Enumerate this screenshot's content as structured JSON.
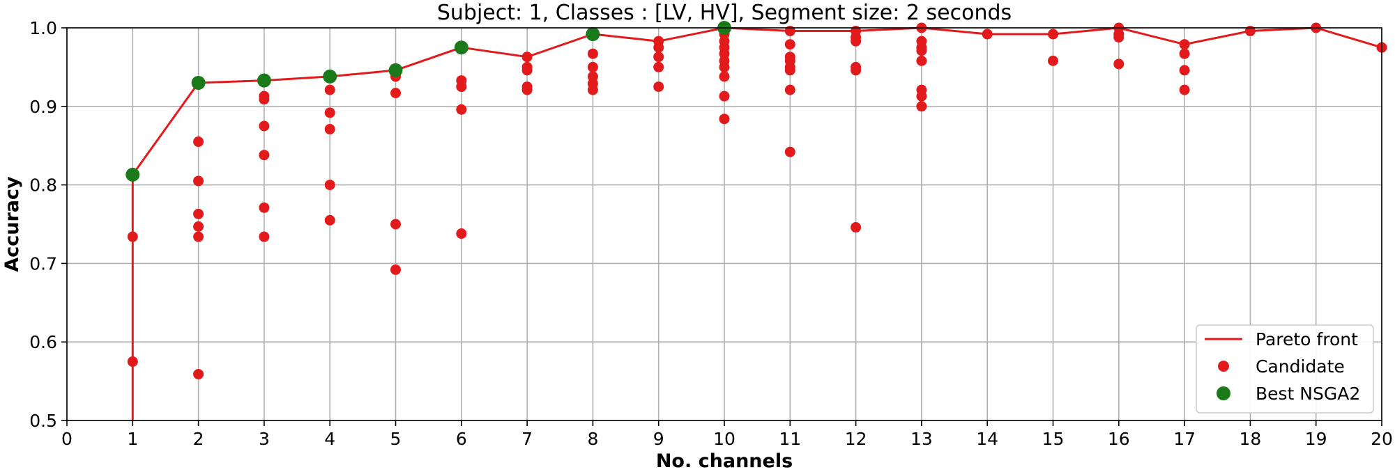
{
  "chart_data": {
    "type": "scatter",
    "title": "Subject: 1, Classes : [LV, HV], Segment size: 2 seconds",
    "xlabel": "No. channels",
    "ylabel": "Accuracy",
    "xlim": [
      0,
      20
    ],
    "ylim": [
      0.5,
      1.0
    ],
    "xticks": [
      "0",
      "1",
      "2",
      "3",
      "4",
      "5",
      "6",
      "7",
      "8",
      "9",
      "10",
      "11",
      "12",
      "13",
      "14",
      "15",
      "16",
      "17",
      "18",
      "19",
      "20"
    ],
    "yticks": [
      "0.5",
      "0.6",
      "0.7",
      "0.8",
      "0.9",
      "1.0"
    ],
    "grid": true,
    "legend_position": "bottom-right",
    "series": [
      {
        "name": "Pareto front",
        "kind": "line",
        "color": "#e31a1c",
        "x": [
          1,
          1,
          2,
          3,
          4,
          5,
          6,
          7,
          8,
          9,
          10,
          11,
          12,
          13,
          14,
          15,
          16,
          17,
          18,
          19,
          20
        ],
        "y": [
          0.5,
          0.813,
          0.93,
          0.933,
          0.938,
          0.946,
          0.975,
          0.963,
          0.992,
          0.983,
          1.0,
          0.996,
          0.996,
          1.0,
          0.992,
          0.992,
          1.0,
          0.979,
          0.996,
          1.0,
          0.975
        ]
      },
      {
        "name": "Candidate",
        "kind": "scatter",
        "color": "#e31a1c",
        "points": [
          [
            1,
            0.813
          ],
          [
            1,
            0.734
          ],
          [
            1,
            0.575
          ],
          [
            2,
            0.93
          ],
          [
            2,
            0.855
          ],
          [
            2,
            0.805
          ],
          [
            2,
            0.763
          ],
          [
            2,
            0.747
          ],
          [
            2,
            0.734
          ],
          [
            2,
            0.559
          ],
          [
            3,
            0.933
          ],
          [
            3,
            0.913
          ],
          [
            3,
            0.909
          ],
          [
            3,
            0.875
          ],
          [
            3,
            0.838
          ],
          [
            3,
            0.771
          ],
          [
            3,
            0.734
          ],
          [
            4,
            0.938
          ],
          [
            4,
            0.921
          ],
          [
            4,
            0.892
          ],
          [
            4,
            0.871
          ],
          [
            4,
            0.8
          ],
          [
            4,
            0.755
          ],
          [
            5,
            0.946
          ],
          [
            5,
            0.938
          ],
          [
            5,
            0.917
          ],
          [
            5,
            0.75
          ],
          [
            5,
            0.692
          ],
          [
            6,
            0.975
          ],
          [
            6,
            0.933
          ],
          [
            6,
            0.925
          ],
          [
            6,
            0.896
          ],
          [
            6,
            0.738
          ],
          [
            7,
            0.963
          ],
          [
            7,
            0.95
          ],
          [
            7,
            0.946
          ],
          [
            7,
            0.925
          ],
          [
            7,
            0.921
          ],
          [
            8,
            0.992
          ],
          [
            8,
            0.967
          ],
          [
            8,
            0.95
          ],
          [
            8,
            0.938
          ],
          [
            8,
            0.929
          ],
          [
            8,
            0.921
          ],
          [
            9,
            0.983
          ],
          [
            9,
            0.975
          ],
          [
            9,
            0.963
          ],
          [
            9,
            0.95
          ],
          [
            9,
            0.925
          ],
          [
            10,
            1.0
          ],
          [
            10,
            0.992
          ],
          [
            10,
            0.983
          ],
          [
            10,
            0.975
          ],
          [
            10,
            0.967
          ],
          [
            10,
            0.958
          ],
          [
            10,
            0.95
          ],
          [
            10,
            0.938
          ],
          [
            10,
            0.913
          ],
          [
            10,
            0.884
          ],
          [
            11,
            0.996
          ],
          [
            11,
            0.979
          ],
          [
            11,
            0.963
          ],
          [
            11,
            0.958
          ],
          [
            11,
            0.95
          ],
          [
            11,
            0.946
          ],
          [
            11,
            0.921
          ],
          [
            11,
            0.842
          ],
          [
            12,
            0.996
          ],
          [
            12,
            0.988
          ],
          [
            12,
            0.983
          ],
          [
            12,
            0.95
          ],
          [
            12,
            0.946
          ],
          [
            12,
            0.746
          ],
          [
            13,
            1.0
          ],
          [
            13,
            0.983
          ],
          [
            13,
            0.975
          ],
          [
            13,
            0.971
          ],
          [
            13,
            0.958
          ],
          [
            13,
            0.921
          ],
          [
            13,
            0.913
          ],
          [
            13,
            0.9
          ],
          [
            14,
            0.992
          ],
          [
            15,
            0.992
          ],
          [
            15,
            0.958
          ],
          [
            16,
            1.0
          ],
          [
            16,
            0.992
          ],
          [
            16,
            0.988
          ],
          [
            16,
            0.954
          ],
          [
            17,
            0.979
          ],
          [
            17,
            0.967
          ],
          [
            17,
            0.946
          ],
          [
            17,
            0.921
          ],
          [
            18,
            0.996
          ],
          [
            19,
            1.0
          ],
          [
            20,
            0.975
          ]
        ]
      },
      {
        "name": "Best NSGA2",
        "kind": "scatter",
        "color": "#1a7a1a",
        "points": [
          [
            1,
            0.813
          ],
          [
            2,
            0.93
          ],
          [
            3,
            0.933
          ],
          [
            4,
            0.938
          ],
          [
            5,
            0.946
          ],
          [
            6,
            0.975
          ],
          [
            8,
            0.992
          ],
          [
            10,
            1.0
          ]
        ]
      }
    ]
  }
}
